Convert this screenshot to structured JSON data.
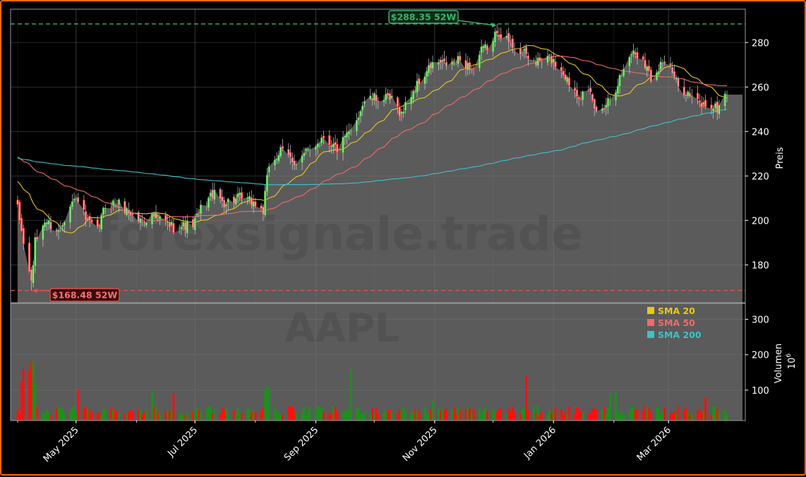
{
  "chart_data": {
    "type": "candlestick",
    "ticker": "AAPL",
    "watermark": "forexsignale.trade",
    "price_axis": {
      "label": "Preis",
      "ylim": [
        163,
        295
      ],
      "ticks": [
        180,
        200,
        220,
        240,
        260,
        280
      ]
    },
    "volume_axis": {
      "label": "Volumen",
      "unit_label": "10",
      "unit_exponent": "6",
      "ylim": [
        14,
        345
      ],
      "ticks": [
        100,
        200,
        300
      ]
    },
    "x_axis": {
      "range": [
        "2025-04-01",
        "2026-03-31"
      ],
      "tick_labels": [
        {
          "date": "2025-05-01",
          "label": "May 2025"
        },
        {
          "date": "2025-07-01",
          "label": "Jul 2025"
        },
        {
          "date": "2025-09-01",
          "label": "Sep 2025"
        },
        {
          "date": "2025-11-01",
          "label": "Nov 2025"
        },
        {
          "date": "2026-01-01",
          "label": "Jan 2026"
        },
        {
          "date": "2026-03-01",
          "label": "Mar 2026"
        }
      ]
    },
    "grid": true,
    "high_52w": {
      "value": 288.35,
      "label": "$288.35 52W",
      "date": "2025-12-03",
      "color": "#3cb371"
    },
    "low_52w": {
      "value": 168.48,
      "label": "$168.48 52W",
      "date": "2025-04-08",
      "color": "#e05050"
    },
    "price_keypoints": [
      [
        "2025-04-01",
        205
      ],
      [
        "2025-04-04",
        190
      ],
      [
        "2025-04-08",
        172
      ],
      [
        "2025-04-10",
        190
      ],
      [
        "2025-04-15",
        200
      ],
      [
        "2025-04-22",
        195
      ],
      [
        "2025-04-28",
        208
      ],
      [
        "2025-05-02",
        210
      ],
      [
        "2025-05-06",
        200
      ],
      [
        "2025-05-12",
        195
      ],
      [
        "2025-05-16",
        207
      ],
      [
        "2025-05-22",
        208
      ],
      [
        "2025-06-02",
        200
      ],
      [
        "2025-06-10",
        202
      ],
      [
        "2025-06-20",
        197
      ],
      [
        "2025-06-30",
        198
      ],
      [
        "2025-07-04",
        205
      ],
      [
        "2025-07-10",
        212
      ],
      [
        "2025-07-16",
        208
      ],
      [
        "2025-07-24",
        210
      ],
      [
        "2025-07-31",
        208
      ],
      [
        "2025-08-05",
        204
      ],
      [
        "2025-08-08",
        225
      ],
      [
        "2025-08-14",
        231
      ],
      [
        "2025-08-22",
        226
      ],
      [
        "2025-08-29",
        232
      ],
      [
        "2025-09-05",
        238
      ],
      [
        "2025-09-12",
        232
      ],
      [
        "2025-09-19",
        240
      ],
      [
        "2025-09-26",
        254
      ],
      [
        "2025-10-03",
        255
      ],
      [
        "2025-10-10",
        254
      ],
      [
        "2025-10-15",
        248
      ],
      [
        "2025-10-20",
        257
      ],
      [
        "2025-10-24",
        262
      ],
      [
        "2025-10-28",
        267
      ],
      [
        "2025-11-01",
        271
      ],
      [
        "2025-11-07",
        270
      ],
      [
        "2025-11-14",
        272
      ],
      [
        "2025-11-21",
        268
      ],
      [
        "2025-11-25",
        276
      ],
      [
        "2025-12-01",
        280
      ],
      [
        "2025-12-03",
        286
      ],
      [
        "2025-12-08",
        281
      ],
      [
        "2025-12-12",
        278
      ],
      [
        "2025-12-18",
        274
      ],
      [
        "2025-12-23",
        271
      ],
      [
        "2025-12-30",
        273
      ],
      [
        "2026-01-05",
        268
      ],
      [
        "2026-01-09",
        262
      ],
      [
        "2026-01-14",
        257
      ],
      [
        "2026-01-20",
        256
      ],
      [
        "2026-01-23",
        248
      ],
      [
        "2026-01-28",
        253
      ],
      [
        "2026-02-02",
        260
      ],
      [
        "2026-02-06",
        268
      ],
      [
        "2026-02-10",
        276
      ],
      [
        "2026-02-16",
        273
      ],
      [
        "2026-02-20",
        264
      ],
      [
        "2026-02-26",
        272
      ],
      [
        "2026-03-02",
        268
      ],
      [
        "2026-03-06",
        260
      ],
      [
        "2026-03-10",
        258
      ],
      [
        "2026-03-14",
        254
      ],
      [
        "2026-03-18",
        252
      ],
      [
        "2026-03-22",
        252
      ],
      [
        "2026-03-26",
        250
      ],
      [
        "2026-03-31",
        258
      ]
    ],
    "volume_spikes": [
      [
        "2025-04-03",
        125
      ],
      [
        "2025-04-04",
        160
      ],
      [
        "2025-04-07",
        155
      ],
      [
        "2025-04-08",
        180
      ],
      [
        "2025-04-09",
        180
      ],
      [
        "2025-04-10",
        120
      ],
      [
        "2025-05-02",
        100
      ],
      [
        "2025-06-09",
        95
      ],
      [
        "2025-06-20",
        90
      ],
      [
        "2025-08-06",
        100
      ],
      [
        "2025-08-07",
        110
      ],
      [
        "2025-08-08",
        105
      ],
      [
        "2025-09-19",
        160
      ],
      [
        "2025-10-31",
        70
      ],
      [
        "2025-12-18",
        140
      ],
      [
        "2026-01-30",
        90
      ],
      [
        "2026-02-02",
        95
      ],
      [
        "2026-03-20",
        80
      ]
    ],
    "series": [
      {
        "name": "SMA 20",
        "color": "#e8c81e"
      },
      {
        "name": "SMA 50",
        "color": "#f06a6a"
      },
      {
        "name": "SMA 200",
        "color": "#3fc1c9"
      }
    ],
    "candle_colors": {
      "up": "#2e9e2e",
      "down": "#ff1e1e",
      "volume_up": "#1e8f1e",
      "volume_down": "#ff1010"
    }
  }
}
